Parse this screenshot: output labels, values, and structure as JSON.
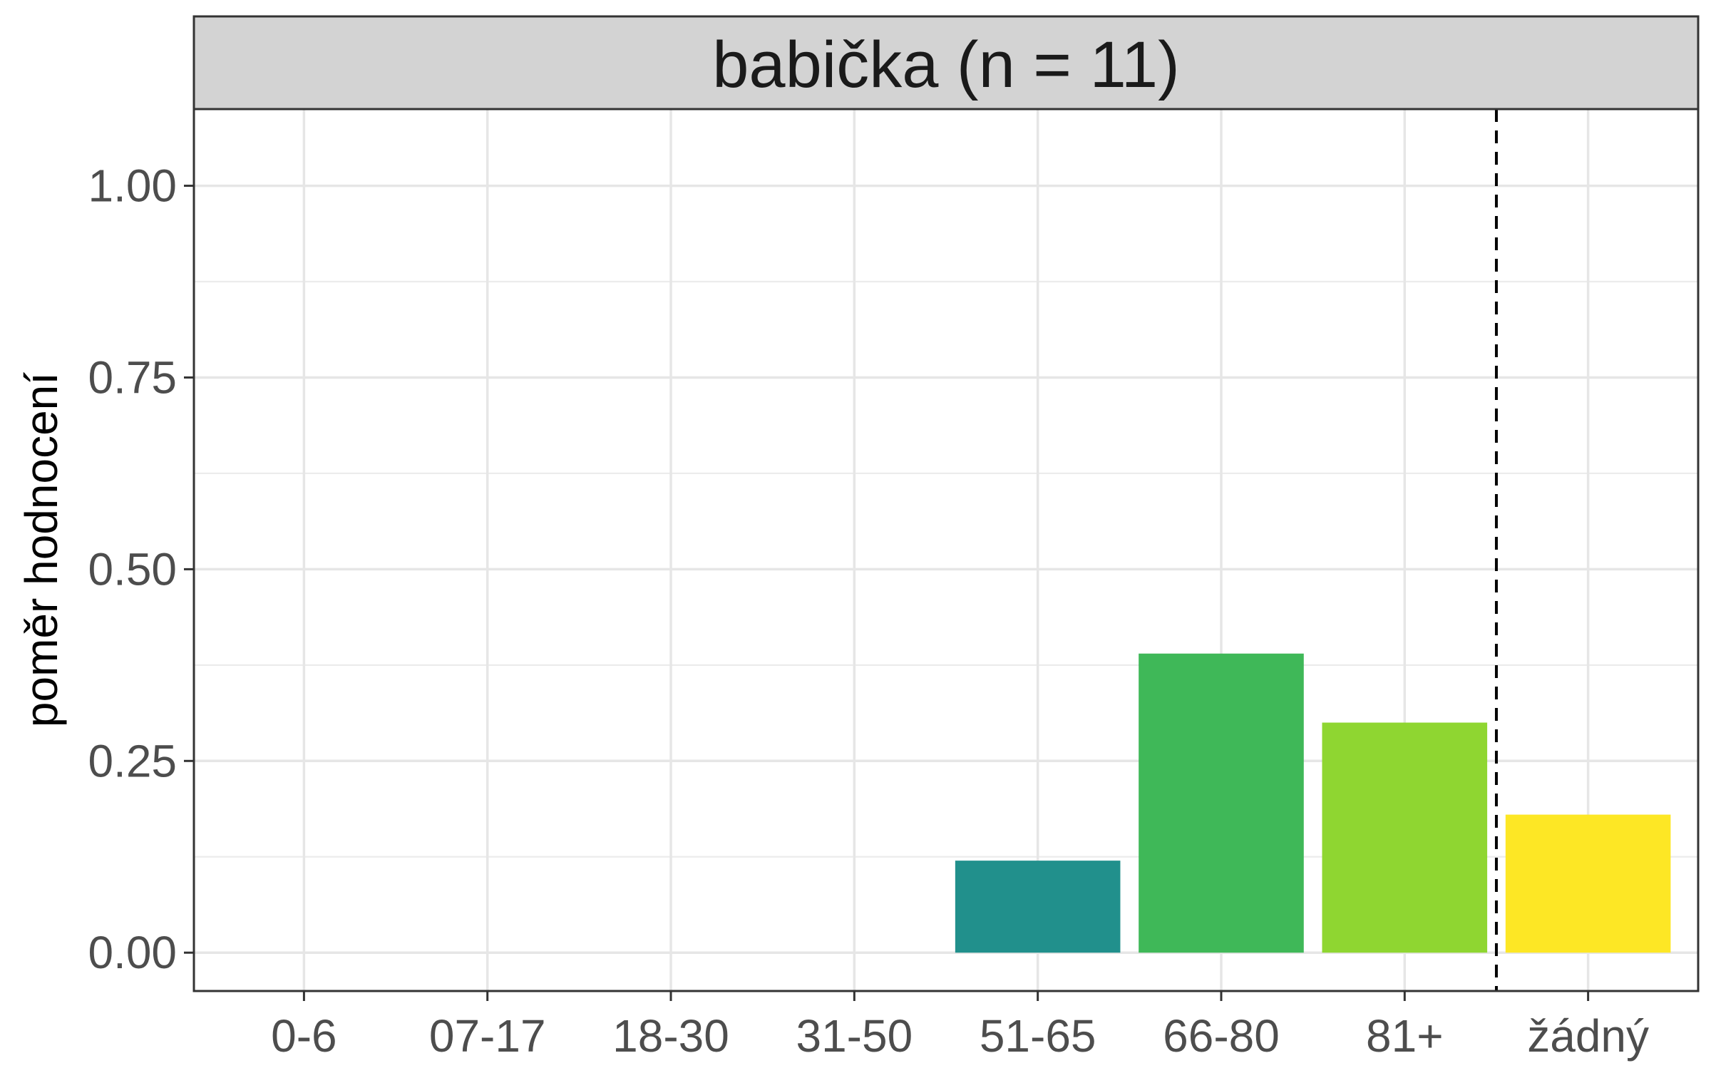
{
  "chart_data": {
    "type": "bar",
    "title": "babička (n = 11)",
    "xlabel": "",
    "ylabel": "poměr hodnocení",
    "categories": [
      "0-6",
      "07-17",
      "18-30",
      "31-50",
      "51-65",
      "66-80",
      "81+",
      "žádný"
    ],
    "values": [
      0,
      0,
      0,
      0,
      0.12,
      0.39,
      0.3,
      0.18
    ],
    "bar_colors": [
      "#440154",
      "#3B528B",
      "#31688E",
      "#26828E",
      "#21908C",
      "#3FB858",
      "#8FD631",
      "#FDE725"
    ],
    "ylim": [
      -0.05,
      1.1
    ],
    "yticks": [
      0.0,
      0.25,
      0.5,
      0.75,
      1.0
    ],
    "ytick_labels": [
      "0.00",
      "0.25",
      "0.50",
      "0.75",
      "1.00"
    ],
    "reference_line": {
      "style": "dashed",
      "color": "#000000",
      "between_categories": [
        "81+",
        "žádný"
      ]
    },
    "grid": true,
    "legend": "none",
    "strip_background": "#d3d3d3",
    "panel_border_color": "#333333"
  }
}
